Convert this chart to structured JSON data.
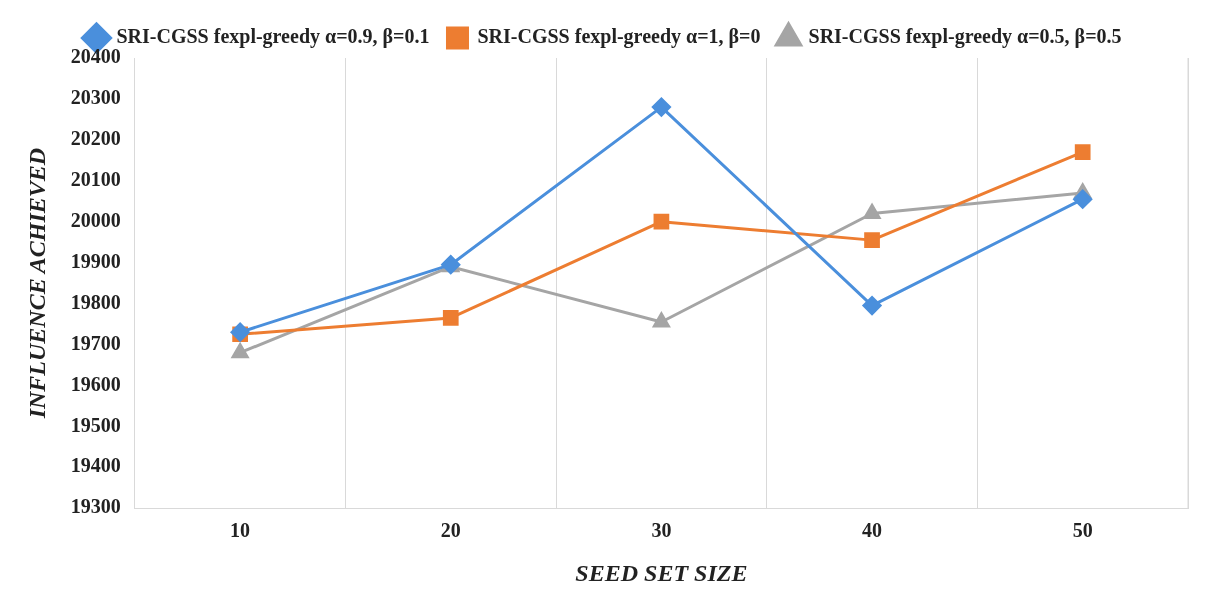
{
  "chart_data": {
    "type": "line",
    "xlabel": "SEED SET SIZE",
    "ylabel": "INFLUENCE ACHIEVED",
    "categories": [
      "10",
      "20",
      "30",
      "40",
      "50"
    ],
    "series": [
      {
        "name": "SRI-CGSS fexpl-greedy α=0.9, β=0.1",
        "color": "#4a8fdc",
        "marker": "diamond",
        "values": [
          19730,
          19895,
          20280,
          19795,
          20055
        ]
      },
      {
        "name": "SRI-CGSS fexpl-greedy α=1, β=0",
        "color": "#ed7d31",
        "marker": "square",
        "values": [
          19725,
          19765,
          20000,
          19955,
          20170
        ]
      },
      {
        "name": "SRI-CGSS fexpl-greedy α=0.5, β=0.5",
        "color": "#a5a5a5",
        "marker": "triangle",
        "values": [
          19680,
          19890,
          19755,
          20020,
          20070
        ]
      }
    ],
    "ylim": [
      19300,
      20400
    ],
    "yticks": [
      19300,
      19400,
      19500,
      19600,
      19700,
      19800,
      19900,
      20000,
      20100,
      20200,
      20300,
      20400
    ],
    "grid": "x",
    "legend": "top",
    "line_style": "solid"
  }
}
